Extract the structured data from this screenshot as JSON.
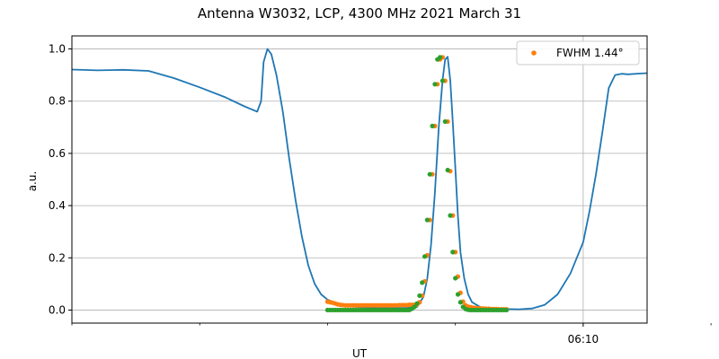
{
  "chart_data": {
    "type": "line",
    "title": "Antenna W3032, LCP, 4300 MHz 2021 March 31",
    "xlabel": "UT",
    "ylabel": "a.u.",
    "ylim": [
      -0.05,
      1.05
    ],
    "yticks": [
      0.0,
      0.2,
      0.4,
      0.6,
      0.8,
      1.0
    ],
    "ytick_labels": [
      "0.0",
      "0.2",
      "0.4",
      "0.6",
      "0.8",
      "1.0"
    ],
    "xlim_minutes": [
      -4.0,
      0.5
    ],
    "xticks_major": [
      {
        "minute": 0.0,
        "label": "06:10"
      }
    ],
    "xticks_minor": [
      -4.0,
      -3.0,
      -2.0,
      -1.0,
      1.0,
      2.0
    ],
    "grid": true,
    "legend": {
      "placement": "top-right",
      "entries": [
        {
          "label": "FWHM 1.44$^\\circ$",
          "display": "FWHM 1.44°",
          "color": "#ff7f0e"
        }
      ]
    },
    "colors": {
      "line": "#1f77b4",
      "fit": "#ff7f0e",
      "points": "#2ca02c"
    },
    "series": [
      {
        "role": "scan",
        "color": "#1f77b4",
        "points": [
          [
            -4.0,
            0.921
          ],
          [
            -3.8,
            0.918
          ],
          [
            -3.6,
            0.92
          ],
          [
            -3.4,
            0.916
          ],
          [
            -3.2,
            0.888
          ],
          [
            -3.0,
            0.853
          ],
          [
            -2.8,
            0.815
          ],
          [
            -2.65,
            0.78
          ],
          [
            -2.55,
            0.76
          ],
          [
            -2.52,
            0.8
          ],
          [
            -2.5,
            0.95
          ],
          [
            -2.47,
            1.0
          ],
          [
            -2.44,
            0.98
          ],
          [
            -2.4,
            0.9
          ],
          [
            -2.35,
            0.76
          ],
          [
            -2.3,
            0.58
          ],
          [
            -2.25,
            0.42
          ],
          [
            -2.2,
            0.28
          ],
          [
            -2.15,
            0.17
          ],
          [
            -2.1,
            0.1
          ],
          [
            -2.05,
            0.06
          ],
          [
            -2.0,
            0.04
          ],
          [
            -1.9,
            0.02
          ],
          [
            -1.8,
            0.013
          ],
          [
            -1.6,
            0.008
          ],
          [
            -1.4,
            0.007
          ],
          [
            -1.3,
            0.012
          ],
          [
            -1.25,
            0.05
          ],
          [
            -1.22,
            0.12
          ],
          [
            -1.19,
            0.25
          ],
          [
            -1.16,
            0.45
          ],
          [
            -1.13,
            0.7
          ],
          [
            -1.1,
            0.88
          ],
          [
            -1.08,
            0.96
          ],
          [
            -1.06,
            0.97
          ],
          [
            -1.04,
            0.88
          ],
          [
            -1.02,
            0.72
          ],
          [
            -1.0,
            0.54
          ],
          [
            -0.98,
            0.36
          ],
          [
            -0.96,
            0.22
          ],
          [
            -0.93,
            0.12
          ],
          [
            -0.9,
            0.06
          ],
          [
            -0.87,
            0.03
          ],
          [
            -0.8,
            0.01
          ],
          [
            -0.7,
            0.005
          ],
          [
            -0.5,
            0.003
          ],
          [
            -0.4,
            0.006
          ],
          [
            -0.3,
            0.02
          ],
          [
            -0.2,
            0.06
          ],
          [
            -0.1,
            0.14
          ],
          [
            0.0,
            0.26
          ],
          [
            0.05,
            0.38
          ],
          [
            0.1,
            0.52
          ],
          [
            0.15,
            0.68
          ],
          [
            0.2,
            0.85
          ],
          [
            0.25,
            0.9
          ],
          [
            0.3,
            0.905
          ],
          [
            0.35,
            0.903
          ],
          [
            0.45,
            0.906
          ],
          [
            0.6,
            0.91
          ],
          [
            0.75,
            0.915
          ],
          [
            0.9,
            0.917
          ],
          [
            1.05,
            0.913
          ],
          [
            1.2,
            0.912
          ],
          [
            1.35,
            0.913
          ],
          [
            1.5,
            0.912
          ]
        ]
      },
      {
        "role": "fit",
        "color": "#ff7f0e",
        "points": [
          [
            -2.0,
            0.032
          ],
          [
            -1.98,
            0.03
          ],
          [
            -1.96,
            0.028
          ],
          [
            -1.94,
            0.025
          ],
          [
            -1.92,
            0.022
          ],
          [
            -1.9,
            0.02
          ],
          [
            -1.88,
            0.019
          ],
          [
            -1.86,
            0.018
          ],
          [
            -1.84,
            0.018
          ],
          [
            -1.82,
            0.018
          ],
          [
            -1.8,
            0.018
          ],
          [
            -1.78,
            0.018
          ],
          [
            -1.76,
            0.018
          ],
          [
            -1.74,
            0.018
          ],
          [
            -1.72,
            0.018
          ],
          [
            -1.7,
            0.018
          ],
          [
            -1.68,
            0.018
          ],
          [
            -1.66,
            0.018
          ],
          [
            -1.64,
            0.018
          ],
          [
            -1.62,
            0.018
          ],
          [
            -1.6,
            0.018
          ],
          [
            -1.58,
            0.018
          ],
          [
            -1.56,
            0.018
          ],
          [
            -1.54,
            0.018
          ],
          [
            -1.52,
            0.018
          ],
          [
            -1.5,
            0.018
          ],
          [
            -1.48,
            0.018
          ],
          [
            -1.46,
            0.018
          ],
          [
            -1.44,
            0.019
          ],
          [
            -1.42,
            0.019
          ],
          [
            -1.4,
            0.019
          ],
          [
            -1.38,
            0.019
          ],
          [
            -1.36,
            0.02
          ],
          [
            -1.34,
            0.02
          ],
          [
            -1.32,
            0.02
          ],
          [
            -1.3,
            0.021
          ],
          [
            -1.28,
            0.03
          ],
          [
            -1.26,
            0.055
          ],
          [
            -1.24,
            0.11
          ],
          [
            -1.22,
            0.21
          ],
          [
            -1.2,
            0.345
          ],
          [
            -1.18,
            0.52
          ],
          [
            -1.16,
            0.705
          ],
          [
            -1.14,
            0.865
          ],
          [
            -1.12,
            0.96
          ],
          [
            -1.1,
            0.968
          ],
          [
            -1.08,
            0.878
          ],
          [
            -1.06,
            0.722
          ],
          [
            -1.04,
            0.532
          ],
          [
            -1.02,
            0.362
          ],
          [
            -1.0,
            0.222
          ],
          [
            -0.98,
            0.128
          ],
          [
            -0.96,
            0.066
          ],
          [
            -0.94,
            0.032
          ],
          [
            -0.92,
            0.018
          ],
          [
            -0.9,
            0.013
          ],
          [
            -0.88,
            0.011
          ],
          [
            -0.86,
            0.009
          ],
          [
            -0.84,
            0.008
          ],
          [
            -0.82,
            0.007
          ],
          [
            -0.8,
            0.006
          ],
          [
            -0.78,
            0.006
          ],
          [
            -0.76,
            0.005
          ],
          [
            -0.74,
            0.005
          ],
          [
            -0.72,
            0.004
          ],
          [
            -0.7,
            0.004
          ],
          [
            -0.68,
            0.004
          ],
          [
            -0.66,
            0.003
          ],
          [
            -0.64,
            0.003
          ],
          [
            -0.62,
            0.003
          ],
          [
            -0.6,
            0.003
          ]
        ]
      },
      {
        "role": "measured",
        "color": "#2ca02c",
        "points": [
          [
            -2.0,
            0.0
          ],
          [
            -1.98,
            0.0
          ],
          [
            -1.96,
            0.0
          ],
          [
            -1.94,
            0.0
          ],
          [
            -1.92,
            0.0
          ],
          [
            -1.9,
            0.0
          ],
          [
            -1.88,
            0.0
          ],
          [
            -1.86,
            0.0
          ],
          [
            -1.84,
            0.0
          ],
          [
            -1.82,
            0.0
          ],
          [
            -1.8,
            0.0
          ],
          [
            -1.78,
            0.0
          ],
          [
            -1.76,
            0.0
          ],
          [
            -1.74,
            0.0
          ],
          [
            -1.72,
            0.0
          ],
          [
            -1.7,
            0.0
          ],
          [
            -1.68,
            0.0
          ],
          [
            -1.66,
            0.0
          ],
          [
            -1.64,
            0.0
          ],
          [
            -1.62,
            0.0
          ],
          [
            -1.6,
            0.0
          ],
          [
            -1.58,
            0.0
          ],
          [
            -1.56,
            0.0
          ],
          [
            -1.54,
            0.0
          ],
          [
            -1.52,
            0.0
          ],
          [
            -1.5,
            0.0
          ],
          [
            -1.48,
            0.0
          ],
          [
            -1.46,
            0.0
          ],
          [
            -1.44,
            0.0
          ],
          [
            -1.42,
            0.0
          ],
          [
            -1.4,
            0.0
          ],
          [
            -1.38,
            0.0
          ],
          [
            -1.36,
            0.0
          ],
          [
            -1.34,
            0.005
          ],
          [
            -1.32,
            0.012
          ],
          [
            -1.3,
            0.025
          ],
          [
            -1.28,
            0.055
          ],
          [
            -1.26,
            0.105
          ],
          [
            -1.24,
            0.205
          ],
          [
            -1.22,
            0.345
          ],
          [
            -1.2,
            0.52
          ],
          [
            -1.18,
            0.705
          ],
          [
            -1.16,
            0.865
          ],
          [
            -1.14,
            0.96
          ],
          [
            -1.12,
            0.968
          ],
          [
            -1.1,
            0.878
          ],
          [
            -1.08,
            0.722
          ],
          [
            -1.06,
            0.536
          ],
          [
            -1.04,
            0.362
          ],
          [
            -1.02,
            0.222
          ],
          [
            -1.0,
            0.122
          ],
          [
            -0.98,
            0.06
          ],
          [
            -0.96,
            0.03
          ],
          [
            -0.94,
            0.012
          ],
          [
            -0.92,
            0.004
          ],
          [
            -0.9,
            0.001
          ],
          [
            -0.88,
            0.0
          ],
          [
            -0.86,
            0.0
          ],
          [
            -0.84,
            0.0
          ],
          [
            -0.82,
            0.0
          ],
          [
            -0.8,
            0.0
          ],
          [
            -0.78,
            0.0
          ],
          [
            -0.76,
            0.0
          ],
          [
            -0.74,
            0.0
          ],
          [
            -0.72,
            0.0
          ],
          [
            -0.7,
            0.0
          ],
          [
            -0.68,
            0.0
          ],
          [
            -0.66,
            0.0
          ],
          [
            -0.64,
            0.0
          ],
          [
            -0.62,
            0.0
          ],
          [
            -0.6,
            0.0
          ]
        ]
      }
    ]
  }
}
